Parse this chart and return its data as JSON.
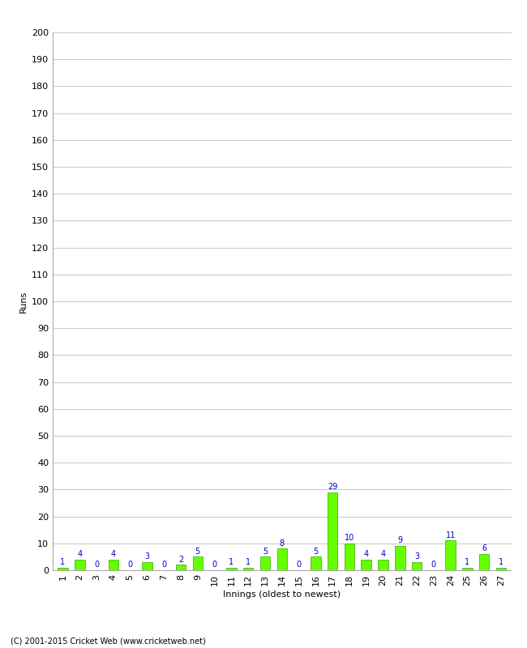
{
  "xlabel": "Innings (oldest to newest)",
  "ylabel": "Runs",
  "categories": [
    "1",
    "2",
    "3",
    "4",
    "5",
    "6",
    "7",
    "8",
    "9",
    "10",
    "11",
    "12",
    "13",
    "14",
    "15",
    "16",
    "17",
    "18",
    "19",
    "20",
    "21",
    "22",
    "23",
    "24",
    "25",
    "26",
    "27"
  ],
  "values": [
    1,
    4,
    0,
    4,
    0,
    3,
    0,
    2,
    5,
    0,
    1,
    1,
    5,
    8,
    0,
    5,
    29,
    10,
    4,
    4,
    9,
    3,
    0,
    11,
    1,
    6,
    1
  ],
  "bar_color": "#66ff00",
  "bar_edge_color": "#33aa00",
  "label_color": "#0000cc",
  "ylim": [
    0,
    200
  ],
  "yticks": [
    0,
    10,
    20,
    30,
    40,
    50,
    60,
    70,
    80,
    90,
    100,
    110,
    120,
    130,
    140,
    150,
    160,
    170,
    180,
    190,
    200
  ],
  "grid_color": "#cccccc",
  "bg_color": "#ffffff",
  "footer": "(C) 2001-2015 Cricket Web (www.cricketweb.net)",
  "label_fontsize": 7,
  "axis_fontsize": 8,
  "title_fontsize": 10,
  "footer_fontsize": 7
}
